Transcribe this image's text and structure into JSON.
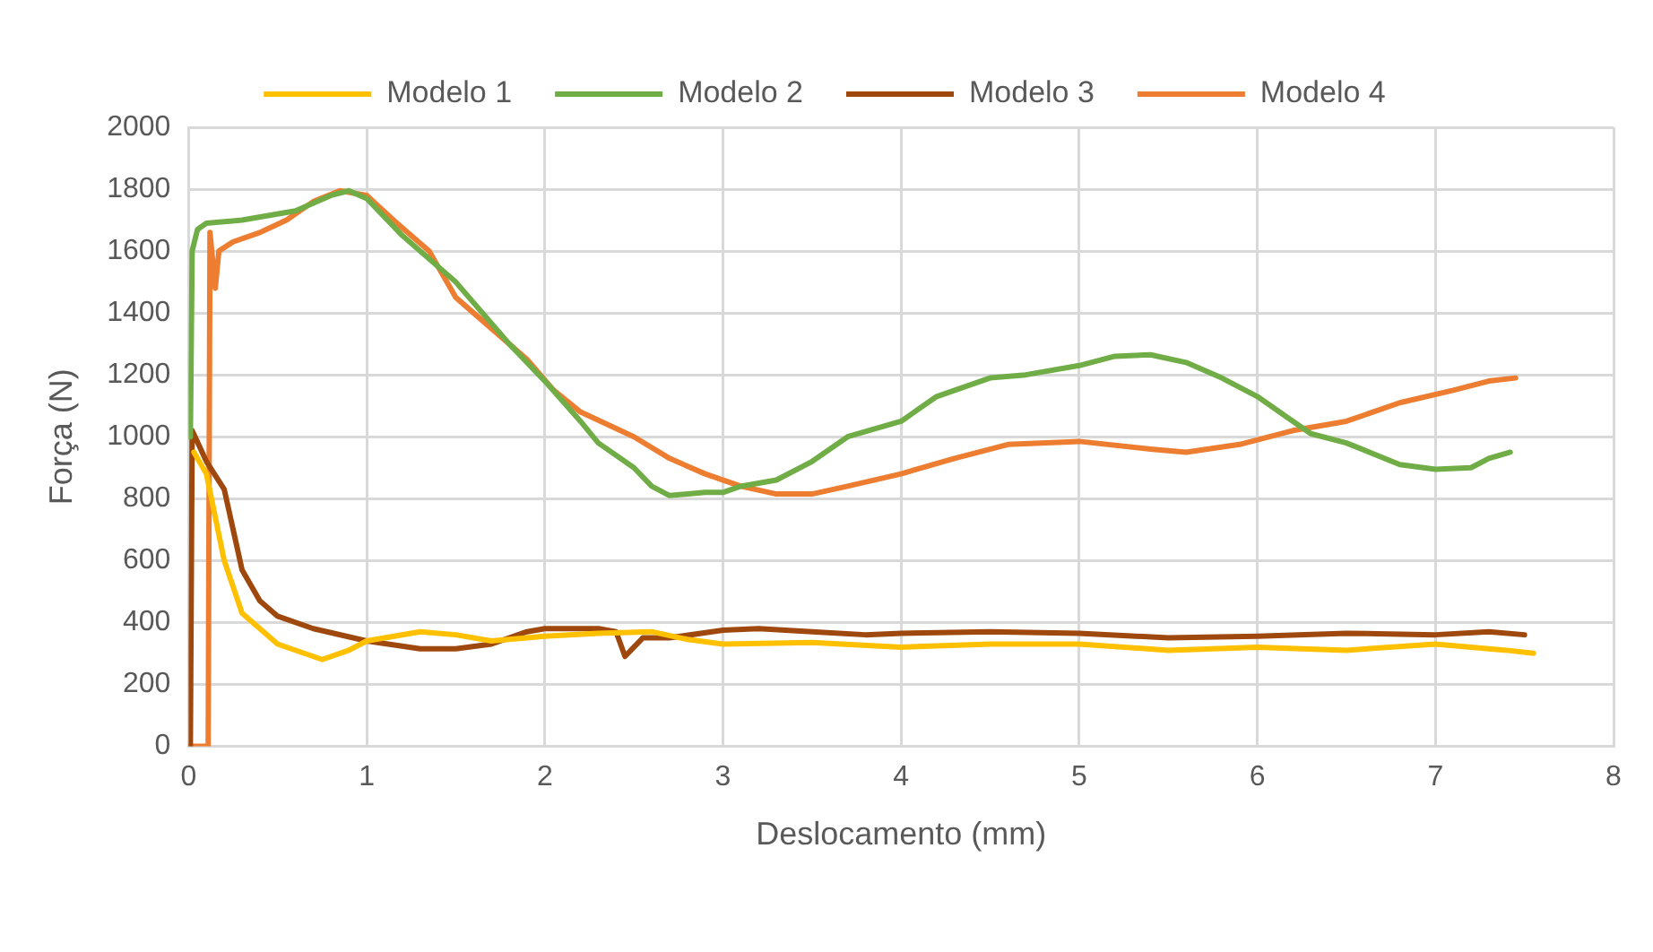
{
  "chart_data": {
    "type": "line",
    "xlabel": "Deslocamento (mm)",
    "ylabel": "Força (N)",
    "xlim": [
      0,
      8
    ],
    "xticks": [
      0,
      1,
      2,
      3,
      4,
      5,
      6,
      7,
      8
    ],
    "ylim": [
      0,
      2000
    ],
    "yticks": [
      0,
      200,
      400,
      600,
      800,
      1000,
      1200,
      1400,
      1600,
      1800,
      2000
    ],
    "grid": true,
    "legend": "top",
    "marker": "none",
    "line_style": "solid",
    "series": [
      {
        "name": "Modelo 1",
        "color": "#ffc000",
        "x": [
          0.03,
          0.1,
          0.2,
          0.3,
          0.5,
          0.75,
          0.9,
          1.0,
          1.3,
          1.5,
          1.7,
          2.0,
          2.3,
          2.6,
          2.8,
          3.0,
          3.5,
          4.0,
          4.5,
          5.0,
          5.5,
          6.0,
          6.5,
          7.0,
          7.4,
          7.55
        ],
        "values": [
          950,
          880,
          600,
          430,
          330,
          280,
          310,
          340,
          370,
          360,
          340,
          355,
          365,
          370,
          345,
          330,
          335,
          320,
          330,
          330,
          310,
          320,
          310,
          330,
          310,
          300
        ]
      },
      {
        "name": "Modelo 2",
        "color": "#70ad47",
        "x": [
          0.0,
          0.01,
          0.02,
          0.05,
          0.1,
          0.3,
          0.6,
          0.8,
          0.9,
          1.0,
          1.2,
          1.5,
          1.8,
          2.0,
          2.2,
          2.3,
          2.5,
          2.6,
          2.7,
          2.9,
          3.0,
          3.1,
          3.3,
          3.5,
          3.7,
          4.0,
          4.2,
          4.5,
          4.7,
          5.0,
          5.2,
          5.4,
          5.6,
          5.8,
          6.0,
          6.2,
          6.3,
          6.5,
          6.8,
          7.0,
          7.2,
          7.3,
          7.42
        ],
        "values": [
          1000,
          1000,
          1600,
          1670,
          1690,
          1700,
          1730,
          1780,
          1795,
          1770,
          1650,
          1500,
          1300,
          1180,
          1050,
          980,
          900,
          840,
          810,
          820,
          820,
          840,
          860,
          920,
          1000,
          1050,
          1130,
          1190,
          1200,
          1230,
          1260,
          1265,
          1240,
          1190,
          1130,
          1050,
          1010,
          980,
          910,
          895,
          900,
          930,
          950
        ]
      },
      {
        "name": "Modelo 3",
        "color": "#9e480e",
        "x": [
          0.0,
          0.01,
          0.02,
          0.1,
          0.2,
          0.25,
          0.3,
          0.4,
          0.5,
          0.7,
          1.0,
          1.3,
          1.5,
          1.7,
          1.9,
          2.0,
          2.3,
          2.4,
          2.45,
          2.55,
          2.7,
          3.0,
          3.2,
          3.5,
          3.8,
          4.0,
          4.5,
          5.0,
          5.5,
          6.0,
          6.5,
          7.0,
          7.3,
          7.5
        ],
        "values": [
          0,
          0,
          1020,
          920,
          830,
          700,
          570,
          470,
          420,
          380,
          340,
          315,
          315,
          330,
          370,
          380,
          380,
          370,
          290,
          350,
          350,
          375,
          380,
          370,
          360,
          365,
          370,
          365,
          350,
          355,
          365,
          360,
          370,
          360
        ]
      },
      {
        "name": "Modelo 4",
        "color": "#ed7d31",
        "x": [
          0.0,
          0.11,
          0.12,
          0.15,
          0.17,
          0.25,
          0.4,
          0.55,
          0.7,
          0.85,
          1.0,
          1.15,
          1.35,
          1.5,
          1.7,
          1.9,
          2.05,
          2.2,
          2.5,
          2.7,
          2.9,
          3.1,
          3.3,
          3.5,
          3.7,
          4.0,
          4.3,
          4.6,
          5.0,
          5.4,
          5.6,
          5.9,
          6.2,
          6.5,
          6.8,
          7.1,
          7.3,
          7.45
        ],
        "values": [
          0,
          0,
          1660,
          1480,
          1600,
          1630,
          1660,
          1700,
          1760,
          1795,
          1780,
          1700,
          1600,
          1450,
          1350,
          1250,
          1150,
          1080,
          1000,
          930,
          880,
          840,
          815,
          815,
          840,
          880,
          930,
          975,
          985,
          960,
          950,
          975,
          1020,
          1050,
          1110,
          1150,
          1180,
          1190
        ]
      }
    ]
  }
}
